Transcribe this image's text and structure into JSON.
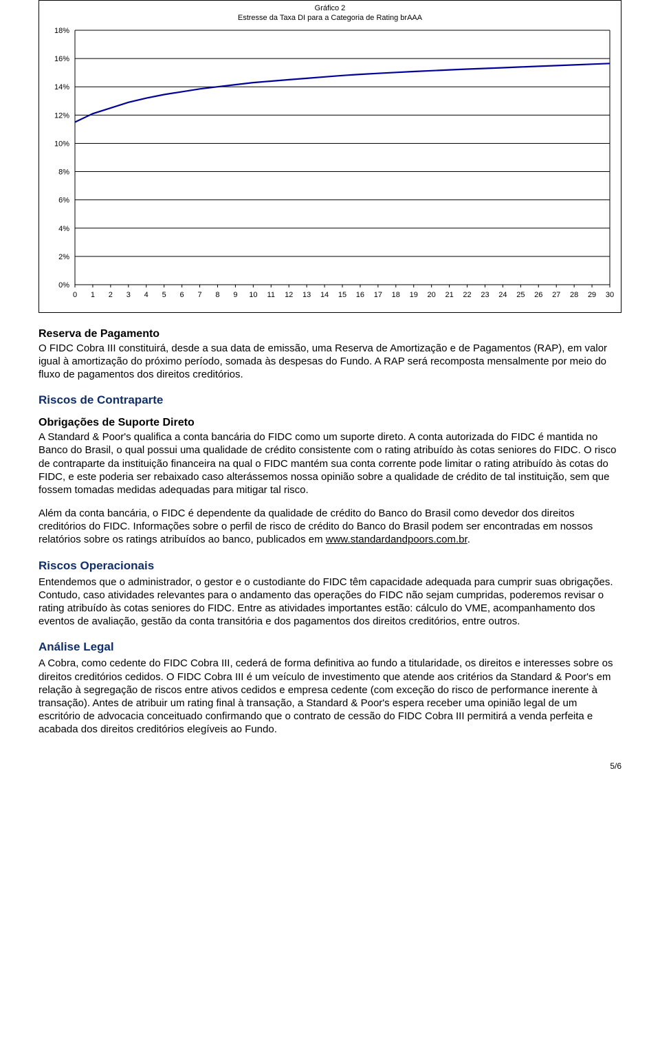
{
  "chart": {
    "type": "line",
    "title_line1": "Gráfico 2",
    "title_line2": "Estresse da Taxa DI para a Categoria de Rating brAAA",
    "title_fontsize": 11,
    "x_values": [
      0,
      1,
      2,
      3,
      4,
      5,
      6,
      7,
      8,
      9,
      10,
      11,
      12,
      13,
      14,
      15,
      16,
      17,
      18,
      19,
      20,
      21,
      22,
      23,
      24,
      25,
      26,
      27,
      28,
      29,
      30
    ],
    "y_values": [
      11.5,
      12.1,
      12.5,
      12.9,
      13.2,
      13.45,
      13.65,
      13.85,
      14.0,
      14.15,
      14.3,
      14.4,
      14.5,
      14.6,
      14.7,
      14.8,
      14.88,
      14.95,
      15.02,
      15.08,
      15.14,
      15.2,
      15.25,
      15.3,
      15.35,
      15.4,
      15.45,
      15.5,
      15.55,
      15.6,
      15.65
    ],
    "line_color": "#000099",
    "line_width": 2.2,
    "xlim": [
      0,
      30
    ],
    "ylim": [
      0,
      18
    ],
    "ytick_step": 2,
    "ytick_labels": [
      "0%",
      "2%",
      "4%",
      "6%",
      "8%",
      "10%",
      "12%",
      "14%",
      "16%",
      "18%"
    ],
    "xtick_step": 1,
    "grid_color": "#000000",
    "background_color": "#ffffff",
    "border_color": "#000000",
    "axis_fontsize": 11
  },
  "sections": {
    "reserva": {
      "heading": "Reserva de Pagamento",
      "para1": "O FIDC Cobra III constituirá, desde a sua data de emissão, uma Reserva de Amortização e de Pagamentos (RAP), em valor igual à amortização do próximo período, somada às despesas do Fundo. A RAP será recomposta mensalmente por meio do fluxo de pagamentos dos direitos creditórios."
    },
    "riscos_contraparte": {
      "heading": "Riscos de Contraparte",
      "sub_heading": "Obrigações de Suporte Direto",
      "para1": "A Standard & Poor's qualifica a conta bancária do FIDC como um suporte direto. A conta autorizada do FIDC é mantida no Banco do Brasil, o qual possui uma qualidade de crédito consistente com o rating atribuído às cotas seniores do FIDC. O risco de contraparte da instituição financeira na qual o FIDC mantém sua conta corrente pode limitar o rating atribuído às cotas do FIDC, e este poderia ser rebaixado caso alterássemos nossa opinião sobre a qualidade de crédito de tal instituição, sem que fossem tomadas medidas adequadas para mitigar tal risco.",
      "para2_prefix": "Além da conta bancária, o FIDC é dependente da qualidade de crédito do Banco do Brasil como devedor dos direitos creditórios do FIDC. Informações sobre o perfil de risco de crédito do Banco do Brasil podem ser encontradas em nossos relatórios sobre os ratings atribuídos ao banco, publicados em ",
      "para2_link": "www.standardandpoors.com.br",
      "para2_suffix": "."
    },
    "riscos_op": {
      "heading": "Riscos Operacionais",
      "para1": "Entendemos que o administrador, o gestor e o custodiante do FIDC têm capacidade adequada para cumprir suas obrigações. Contudo, caso atividades relevantes para o andamento das operações do FIDC não sejam cumpridas, poderemos revisar o rating atribuído às cotas seniores do FIDC. Entre as atividades importantes estão: cálculo do VME, acompanhamento dos eventos de avaliação, gestão da conta transitória e dos pagamentos dos direitos creditórios, entre outros."
    },
    "analise_legal": {
      "heading": "Análise Legal",
      "para1": "A Cobra, como cedente do FIDC Cobra III, cederá de forma definitiva ao fundo a titularidade, os direitos e interesses sobre os direitos creditórios cedidos. O FIDC Cobra III é um veículo de investimento que atende aos critérios da Standard & Poor's em relação à segregação de riscos entre ativos cedidos e empresa cedente (com exceção do risco de performance inerente à transação). Antes de atribuir um rating final à transação, a Standard & Poor's espera receber uma opinião legal de um escritório de advocacia conceituado confirmando que o contrato de cessão do FIDC Cobra III permitirá a venda perfeita e acabada dos direitos creditórios elegíveis ao Fundo."
    }
  },
  "page_number": "5/6"
}
